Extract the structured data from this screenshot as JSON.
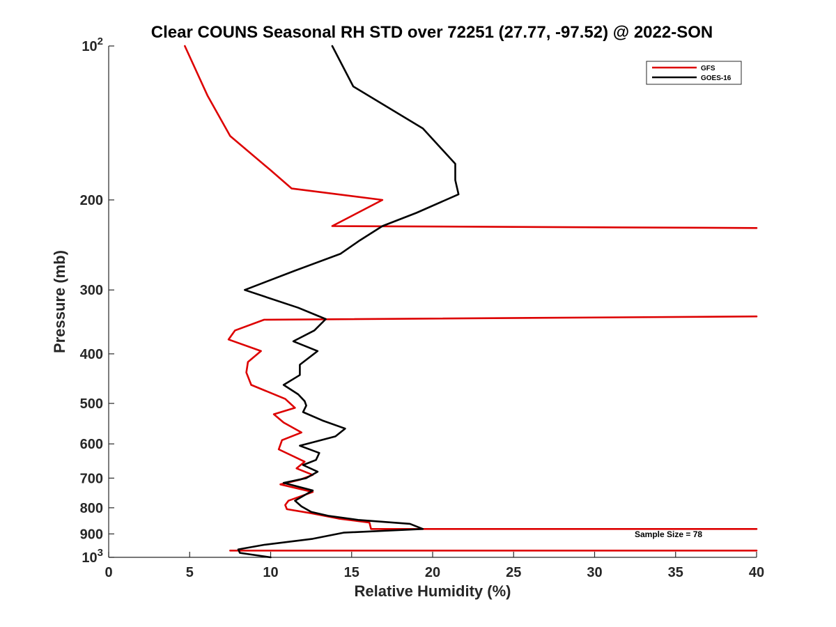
{
  "chart_data": {
    "type": "line",
    "title": "Clear COUNS Seasonal RH STD over 72251 (27.77, -97.52) @ 2022-SON",
    "xlabel": "Relative Humidity (%)",
    "ylabel": "Pressure (mb)",
    "xlim": [
      0,
      40
    ],
    "ylim": [
      100,
      1000
    ],
    "yscale": "log",
    "y_reversed": true,
    "x_ticks": [
      "0",
      "5",
      "10",
      "15",
      "20",
      "25",
      "30",
      "35",
      "40"
    ],
    "y_ticks": [
      {
        "value": 100,
        "base": "10",
        "exp": "2"
      },
      {
        "value": 200,
        "label": "200"
      },
      {
        "value": 300,
        "label": "300"
      },
      {
        "value": 400,
        "label": "400"
      },
      {
        "value": 500,
        "label": "500"
      },
      {
        "value": 600,
        "label": "600"
      },
      {
        "value": 700,
        "label": "700"
      },
      {
        "value": 800,
        "label": "800"
      },
      {
        "value": 900,
        "label": "900"
      },
      {
        "value": 1000,
        "base": "10",
        "exp": "3"
      }
    ],
    "grid": false,
    "legend_position": "top-right",
    "annotation": "Sample Size = 78",
    "series": [
      {
        "name": "GFS",
        "color": "#dd0000",
        "points": [
          [
            4.7,
            100
          ],
          [
            6.1,
            125
          ],
          [
            7.5,
            150
          ],
          [
            10.0,
            175
          ],
          [
            11.3,
            190
          ],
          [
            16.9,
            200
          ],
          [
            13.8,
            225
          ],
          [
            40.0,
            227
          ],
          [
            40.0,
            227
          ]
        ],
        "segments": [
          [
            [
              4.7,
              100
            ],
            [
              6.1,
              125
            ],
            [
              7.5,
              150
            ],
            [
              10.0,
              175
            ],
            [
              11.3,
              190
            ],
            [
              16.9,
              200
            ],
            [
              13.8,
              225
            ],
            [
              40.0,
              227
            ]
          ],
          [
            [
              40.0,
              338
            ],
            [
              9.6,
              343
            ],
            [
              7.8,
              360
            ],
            [
              7.4,
              375
            ],
            [
              9.4,
              395
            ],
            [
              8.6,
              415
            ],
            [
              8.5,
              435
            ],
            [
              8.8,
              460
            ],
            [
              10.9,
              490
            ],
            [
              11.5,
              510
            ],
            [
              10.2,
              525
            ],
            [
              10.8,
              545
            ],
            [
              11.9,
              570
            ],
            [
              10.7,
              590
            ],
            [
              10.5,
              615
            ],
            [
              12.1,
              650
            ],
            [
              11.6,
              670
            ],
            [
              12.6,
              690
            ],
            [
              11.8,
              705
            ],
            [
              10.6,
              720
            ],
            [
              12.6,
              745
            ],
            [
              11.1,
              775
            ],
            [
              10.9,
              790
            ],
            [
              11.0,
              805
            ],
            [
              12.5,
              820
            ],
            [
              14.2,
              840
            ],
            [
              16.1,
              855
            ],
            [
              16.2,
              880
            ],
            [
              40.0,
              880
            ]
          ],
          [
            [
              7.5,
              970
            ],
            [
              40.0,
              970
            ]
          ]
        ]
      },
      {
        "name": "GOES-16",
        "color": "#000000",
        "segments": [
          [
            [
              13.8,
              100
            ],
            [
              15.1,
              120
            ],
            [
              19.4,
              145
            ],
            [
              21.4,
              170
            ],
            [
              21.4,
              183
            ],
            [
              21.6,
              195
            ],
            [
              19.0,
              212
            ],
            [
              16.9,
              225
            ],
            [
              15.5,
              240
            ],
            [
              14.3,
              255
            ],
            [
              11.5,
              275
            ],
            [
              8.4,
              300
            ],
            [
              11.7,
              325
            ],
            [
              13.4,
              342
            ],
            [
              12.7,
              360
            ],
            [
              11.4,
              378
            ],
            [
              12.9,
              395
            ],
            [
              11.8,
              420
            ],
            [
              11.8,
              440
            ],
            [
              10.8,
              460
            ],
            [
              11.7,
              480
            ],
            [
              12.1,
              495
            ],
            [
              12.2,
              505
            ],
            [
              12.0,
              520
            ],
            [
              13.2,
              540
            ],
            [
              14.6,
              560
            ],
            [
              14.0,
              580
            ],
            [
              11.8,
              605
            ],
            [
              13.0,
              625
            ],
            [
              12.8,
              645
            ],
            [
              12.0,
              660
            ],
            [
              12.9,
              680
            ],
            [
              12.2,
              700
            ],
            [
              10.8,
              715
            ],
            [
              12.6,
              740
            ],
            [
              11.5,
              775
            ],
            [
              11.9,
              795
            ],
            [
              12.5,
              815
            ],
            [
              13.6,
              830
            ],
            [
              15.4,
              845
            ],
            [
              18.6,
              860
            ],
            [
              19.4,
              880
            ],
            [
              14.5,
              895
            ],
            [
              12.6,
              920
            ],
            [
              9.6,
              945
            ],
            [
              8.0,
              965
            ],
            [
              8.1,
              980
            ],
            [
              10.0,
              1000
            ]
          ]
        ]
      }
    ]
  }
}
